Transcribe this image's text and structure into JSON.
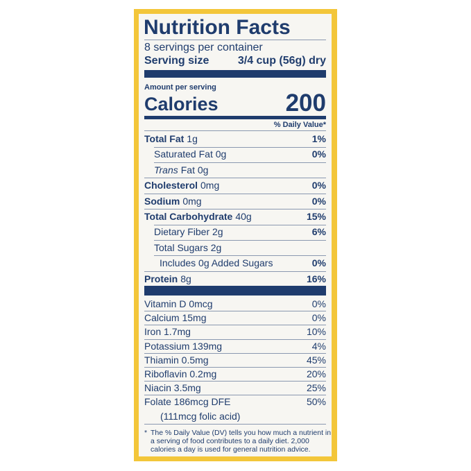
{
  "title": "Nutrition Facts",
  "servings": "8 servings per container",
  "serving_size": {
    "label": "Serving size",
    "value": "3/4 cup (56g) dry"
  },
  "amount_per_serving": "Amount per serving",
  "calories": {
    "label": "Calories",
    "value": "200"
  },
  "dv_header": "% Daily Value*",
  "nutrients": [
    {
      "label": "Total Fat",
      "amount": "1g",
      "dv": "1%",
      "style": "main"
    },
    {
      "label": "Saturated Fat 0g",
      "dv": "0%",
      "style": "sub"
    },
    {
      "label": "Trans",
      "amount": "Fat 0g",
      "style": "sub-italic"
    },
    {
      "label": "Cholesterol",
      "amount": "0mg",
      "dv": "0%",
      "style": "main"
    },
    {
      "label": "Sodium",
      "amount": "0mg",
      "dv": "0%",
      "style": "main"
    },
    {
      "label": "Total Carbohydrate",
      "amount": "40g",
      "dv": "15%",
      "style": "main"
    },
    {
      "label": "Dietary Fiber 2g",
      "dv": "6%",
      "style": "sub"
    },
    {
      "label": "Total Sugars 2g",
      "style": "sub"
    },
    {
      "label": "Includes 0g Added Sugars",
      "dv": "0%",
      "style": "subsub"
    },
    {
      "label": "Protein",
      "amount": "8g",
      "dv": "16%",
      "style": "main"
    }
  ],
  "vitamins": [
    {
      "label": "Vitamin D 0mcg",
      "dv": "0%"
    },
    {
      "label": "Calcium 15mg",
      "dv": "0%"
    },
    {
      "label": "Iron 1.7mg",
      "dv": "10%"
    },
    {
      "label": "Potassium 139mg",
      "dv": "4%"
    },
    {
      "label": "Thiamin 0.5mg",
      "dv": "45%"
    },
    {
      "label": "Riboflavin 0.2mg",
      "dv": "20%"
    },
    {
      "label": "Niacin 3.5mg",
      "dv": "25%"
    },
    {
      "label": "Folate 186mcg DFE",
      "dv": "50%",
      "note": "(111mcg folic acid)"
    }
  ],
  "footnote": {
    "marker": "*",
    "lines": [
      "The % Daily Value (DV) tells you how much a nutrient in",
      "a serving of food contributes to a daily diet. 2,000",
      "calories a day is used for general nutrition advice."
    ]
  }
}
